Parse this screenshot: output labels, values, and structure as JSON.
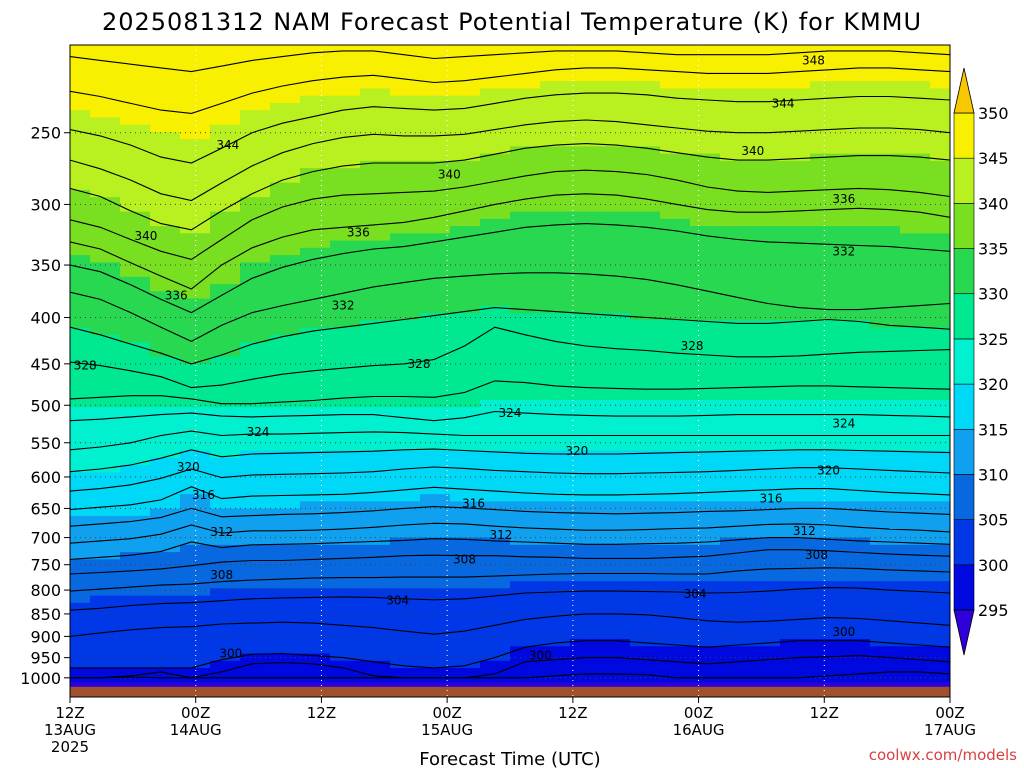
{
  "chart_data": {
    "type": "heatmap",
    "title": "2025081312 NAM Forecast Potential Temperature (K) for KMMU",
    "xlabel": "Forecast Time (UTC)",
    "credit": "coolwx.com/models",
    "y_axis": {
      "scale": "log",
      "range": [
        1050,
        200
      ],
      "ticks": [
        250,
        300,
        350,
        400,
        450,
        500,
        550,
        600,
        650,
        700,
        750,
        800,
        850,
        900,
        950,
        1000
      ]
    },
    "x_axis": {
      "range": [
        "2025-08-13T12:00Z",
        "2025-08-17T00:00Z"
      ],
      "ticks": [
        {
          "lines": [
            "12Z",
            "13AUG",
            "2025"
          ],
          "time": "2025-08-13T12:00Z"
        },
        {
          "lines": [
            "00Z",
            "14AUG"
          ],
          "time": "2025-08-14T00:00Z"
        },
        {
          "lines": [
            "12Z"
          ],
          "time": "2025-08-14T12:00Z"
        },
        {
          "lines": [
            "00Z",
            "15AUG"
          ],
          "time": "2025-08-15T00:00Z"
        },
        {
          "lines": [
            "12Z"
          ],
          "time": "2025-08-15T12:00Z"
        },
        {
          "lines": [
            "00Z",
            "16AUG"
          ],
          "time": "2025-08-16T00:00Z"
        },
        {
          "lines": [
            "12Z"
          ],
          "time": "2025-08-16T12:00Z"
        },
        {
          "lines": [
            "00Z",
            "17AUG"
          ],
          "time": "2025-08-17T00:00Z"
        }
      ],
      "grid": "dotted"
    },
    "colorbar": {
      "labels": [
        295,
        300,
        305,
        310,
        315,
        320,
        325,
        330,
        335,
        340,
        345,
        350
      ],
      "bins": [
        {
          "from": 290,
          "to": 295,
          "color": "#3000d8"
        },
        {
          "from": 295,
          "to": 300,
          "color": "#0008e0"
        },
        {
          "from": 300,
          "to": 305,
          "color": "#0038e8"
        },
        {
          "from": 305,
          "to": 310,
          "color": "#0868e0"
        },
        {
          "from": 310,
          "to": 315,
          "color": "#10a0f0"
        },
        {
          "from": 315,
          "to": 320,
          "color": "#00d8f8"
        },
        {
          "from": 320,
          "to": 325,
          "color": "#00f0d0"
        },
        {
          "from": 325,
          "to": 330,
          "color": "#00e890"
        },
        {
          "from": 330,
          "to": 335,
          "color": "#28d850"
        },
        {
          "from": 335,
          "to": 340,
          "color": "#78e020"
        },
        {
          "from": 340,
          "to": 345,
          "color": "#b8f020"
        },
        {
          "from": 345,
          "to": 350,
          "color": "#f8f000"
        },
        {
          "from": 350,
          "to": 355,
          "color": "#f8c800"
        }
      ],
      "extend": "both"
    },
    "ground_color": "#a0522d",
    "isentropes": [
      {
        "theta": 296,
        "p": [
          1000,
          1000,
          998,
          1000,
          1000,
          1000,
          1000,
          1000,
          1000,
          1000,
          1000,
          1000,
          1000,
          1000,
          1000,
          1000,
          995,
          990,
          990,
          992,
          1000,
          1000,
          1000,
          1000,
          1000,
          995,
          990,
          985,
          985,
          990
        ]
      },
      {
        "theta": 298,
        "p": [
          1000,
          1000,
          995,
          985,
          1000,
          985,
          965,
          962,
          965,
          975,
          995,
          1000,
          1000,
          1000,
          990,
          960,
          955,
          950,
          950,
          955,
          960,
          965,
          960,
          955,
          950,
          948,
          945,
          950,
          955,
          960
        ]
      },
      {
        "theta": 300,
        "p": [
          975,
          975,
          975,
          975,
          975,
          955,
          942,
          940,
          945,
          950,
          960,
          970,
          975,
          970,
          950,
          925,
          915,
          910,
          910,
          915,
          920,
          925,
          920,
          915,
          910,
          910,
          910,
          915,
          920,
          925
        ]
      },
      {
        "theta": 302,
        "p": [
          900,
          892,
          885,
          880,
          878,
          872,
          870,
          868,
          870,
          875,
          880,
          888,
          895,
          888,
          875,
          862,
          855,
          850,
          850,
          852,
          858,
          865,
          868,
          866,
          862,
          858,
          860,
          865,
          870,
          875
        ]
      },
      {
        "theta": 304,
        "p": [
          842,
          838,
          832,
          828,
          826,
          822,
          818,
          816,
          815,
          814,
          815,
          818,
          820,
          818,
          812,
          806,
          804,
          802,
          802,
          803,
          804,
          806,
          805,
          802,
          798,
          795,
          796,
          800,
          803,
          806
        ]
      },
      {
        "theta": 306,
        "p": [
          802,
          798,
          794,
          790,
          788,
          783,
          780,
          778,
          776,
          775,
          775,
          774,
          774,
          774,
          772,
          770,
          768,
          767,
          767,
          767,
          768,
          768,
          762,
          758,
          757,
          756,
          757,
          760,
          762,
          764
        ]
      },
      {
        "theta": 308,
        "p": [
          768,
          765,
          762,
          758,
          752,
          745,
          742,
          742,
          740,
          738,
          736,
          733,
          732,
          733,
          733,
          735,
          736,
          738,
          738,
          738,
          736,
          734,
          728,
          722,
          722,
          724,
          727,
          730,
          732,
          734
        ]
      },
      {
        "theta": 310,
        "p": [
          740,
          736,
          732,
          725,
          708,
          718,
          713,
          712,
          711,
          709,
          707,
          705,
          702,
          703,
          706,
          708,
          710,
          712,
          712,
          711,
          710,
          708,
          704,
          700,
          700,
          703,
          706,
          708,
          710,
          712
        ]
      },
      {
        "theta": 312,
        "p": [
          710,
          706,
          702,
          694,
          678,
          692,
          688,
          688,
          687,
          685,
          682,
          678,
          675,
          676,
          680,
          683,
          685,
          687,
          687,
          686,
          684,
          683,
          680,
          677,
          676,
          678,
          682,
          685,
          687,
          690
        ]
      },
      {
        "theta": 314,
        "p": [
          680,
          676,
          672,
          665,
          650,
          664,
          662,
          660,
          659,
          657,
          654,
          650,
          647,
          649,
          652,
          655,
          657,
          658,
          659,
          658,
          657,
          655,
          654,
          652,
          650,
          650,
          653,
          656,
          658,
          660
        ]
      },
      {
        "theta": 316,
        "p": [
          652,
          648,
          644,
          636,
          615,
          634,
          630,
          629,
          628,
          627,
          624,
          620,
          616,
          619,
          622,
          625,
          627,
          628,
          628,
          627,
          626,
          624,
          622,
          620,
          618,
          618,
          621,
          624,
          626,
          628
        ]
      },
      {
        "theta": 318,
        "p": [
          622,
          618,
          612,
          602,
          588,
          601,
          597,
          596,
          595,
          594,
          592,
          588,
          585,
          587,
          590,
          592,
          594,
          595,
          595,
          594,
          593,
          592,
          590,
          588,
          586,
          586,
          588,
          590,
          592,
          594
        ]
      },
      {
        "theta": 320,
        "p": [
          592,
          588,
          582,
          572,
          560,
          570,
          566,
          565,
          564,
          563,
          562,
          560,
          559,
          561,
          563,
          565,
          566,
          566,
          566,
          565,
          564,
          563,
          562,
          561,
          560,
          560,
          561,
          562,
          563,
          564
        ]
      },
      {
        "theta": 322,
        "p": [
          560,
          556,
          550,
          540,
          534,
          540,
          538,
          538,
          537,
          536,
          535,
          536,
          538,
          540,
          540,
          540,
          540,
          540,
          540,
          540,
          540,
          540,
          540,
          540,
          540,
          540,
          540,
          540,
          540,
          540
        ]
      },
      {
        "theta": 324,
        "p": [
          520,
          518,
          515,
          512,
          510,
          514,
          515,
          514,
          513,
          512,
          512,
          516,
          520,
          516,
          508,
          510,
          512,
          513,
          514,
          514,
          514,
          513,
          512,
          512,
          512,
          512,
          512,
          513,
          514,
          515
        ]
      },
      {
        "theta": 326,
        "p": [
          492,
          490,
          488,
          488,
          492,
          498,
          498,
          496,
          494,
          491,
          489,
          489,
          490,
          484,
          470,
          472,
          476,
          478,
          479,
          480,
          480,
          479,
          478,
          477,
          476,
          476,
          477,
          478,
          479,
          480
        ]
      },
      {
        "theta": 328,
        "p": [
          448,
          452,
          458,
          465,
          478,
          475,
          468,
          462,
          458,
          455,
          452,
          450,
          445,
          430,
          410,
          418,
          425,
          430,
          433,
          435,
          438,
          440,
          442,
          442,
          441,
          439,
          437,
          436,
          435,
          434
        ]
      },
      {
        "theta": 330,
        "p": [
          410,
          418,
          428,
          438,
          450,
          440,
          428,
          420,
          414,
          410,
          406,
          402,
          398,
          394,
          390,
          392,
          394,
          396,
          398,
          400,
          402,
          404,
          406,
          406,
          404,
          402,
          404,
          408,
          410,
          412
        ]
      },
      {
        "theta": 332,
        "p": [
          375,
          382,
          395,
          410,
          425,
          408,
          395,
          388,
          382,
          376,
          370,
          366,
          362,
          360,
          358,
          357,
          357,
          358,
          360,
          363,
          368,
          374,
          380,
          386,
          390,
          392,
          392,
          390,
          388,
          386
        ]
      },
      {
        "theta": 334,
        "p": [
          350,
          356,
          368,
          382,
          395,
          378,
          362,
          352,
          345,
          340,
          336,
          334,
          330,
          326,
          322,
          318,
          316,
          315,
          316,
          318,
          321,
          325,
          328,
          330,
          331,
          332,
          333,
          334,
          336,
          338
        ]
      },
      {
        "theta": 336,
        "p": [
          330,
          336,
          348,
          360,
          372,
          350,
          335,
          326,
          320,
          318,
          316,
          314,
          310,
          305,
          300,
          296,
          293,
          292,
          293,
          296,
          300,
          304,
          306,
          306,
          305,
          304,
          303,
          304,
          306,
          310
        ]
      },
      {
        "theta": 338,
        "p": [
          312,
          318,
          328,
          338,
          345,
          328,
          312,
          302,
          296,
          293,
          292,
          291,
          290,
          287,
          283,
          279,
          276,
          275,
          276,
          278,
          282,
          287,
          290,
          291,
          290,
          289,
          288,
          289,
          291,
          294
        ]
      },
      {
        "theta": 340,
        "p": [
          288,
          294,
          305,
          315,
          320,
          305,
          292,
          282,
          276,
          272,
          270,
          270,
          270,
          268,
          264,
          260,
          258,
          257,
          258,
          260,
          263,
          266,
          268,
          268,
          267,
          266,
          265,
          265,
          266,
          268
        ]
      },
      {
        "theta": 342,
        "p": [
          268,
          274,
          282,
          292,
          297,
          284,
          272,
          263,
          257,
          253,
          251,
          252,
          252,
          251,
          248,
          245,
          243,
          242,
          243,
          245,
          247,
          249,
          250,
          250,
          249,
          248,
          247,
          247,
          248,
          250
        ]
      },
      {
        "theta": 344,
        "p": [
          248,
          252,
          258,
          266,
          270,
          260,
          250,
          244,
          240,
          236,
          234,
          235,
          236,
          235,
          232,
          229,
          227,
          226,
          226,
          227,
          229,
          230,
          231,
          231,
          230,
          229,
          228,
          228,
          229,
          230
        ]
      },
      {
        "theta": 346,
        "p": [
          225,
          228,
          232,
          236,
          238,
          232,
          226,
          222,
          219,
          217,
          216,
          218,
          220,
          219,
          217,
          215,
          213,
          212,
          212,
          213,
          214,
          215,
          215,
          215,
          214,
          213,
          212,
          212,
          213,
          214
        ]
      },
      {
        "theta": 348,
        "p": [
          206,
          208,
          210,
          212,
          214,
          211,
          208,
          206,
          204,
          203,
          203,
          205,
          207,
          206,
          205,
          204,
          203,
          203,
          203,
          204,
          205,
          205,
          205,
          205,
          204,
          203,
          203,
          203,
          204,
          205
        ]
      }
    ],
    "contour_labels": [
      {
        "text": "348",
        "col": 24.5,
        "p": 208
      },
      {
        "text": "344",
        "col": 5.2,
        "p": 258
      },
      {
        "text": "344",
        "col": 23.5,
        "p": 232
      },
      {
        "text": "340",
        "col": 2.5,
        "p": 325
      },
      {
        "text": "340",
        "col": 12.5,
        "p": 278
      },
      {
        "text": "340",
        "col": 22.5,
        "p": 262
      },
      {
        "text": "336",
        "col": 3.5,
        "p": 378
      },
      {
        "text": "336",
        "col": 9.5,
        "p": 322
      },
      {
        "text": "336",
        "col": 25.5,
        "p": 296
      },
      {
        "text": "332",
        "col": 9.0,
        "p": 388
      },
      {
        "text": "332",
        "col": 25.5,
        "p": 338
      },
      {
        "text": "328",
        "col": 0.5,
        "p": 452
      },
      {
        "text": "328",
        "col": 11.5,
        "p": 450
      },
      {
        "text": "328",
        "col": 20.5,
        "p": 430
      },
      {
        "text": "324",
        "col": 6.2,
        "p": 535
      },
      {
        "text": "324",
        "col": 14.5,
        "p": 510
      },
      {
        "text": "324",
        "col": 25.5,
        "p": 524
      },
      {
        "text": "320",
        "col": 3.9,
        "p": 585
      },
      {
        "text": "320",
        "col": 16.7,
        "p": 562
      },
      {
        "text": "320",
        "col": 25.0,
        "p": 590
      },
      {
        "text": "316",
        "col": 4.4,
        "p": 628
      },
      {
        "text": "316",
        "col": 13.3,
        "p": 642
      },
      {
        "text": "316",
        "col": 23.1,
        "p": 634
      },
      {
        "text": "312",
        "col": 5.0,
        "p": 690
      },
      {
        "text": "312",
        "col": 14.2,
        "p": 695
      },
      {
        "text": "312",
        "col": 24.2,
        "p": 688
      },
      {
        "text": "308",
        "col": 5.0,
        "p": 770
      },
      {
        "text": "308",
        "col": 13.0,
        "p": 740
      },
      {
        "text": "308",
        "col": 24.6,
        "p": 732
      },
      {
        "text": "304",
        "col": 10.8,
        "p": 822
      },
      {
        "text": "304",
        "col": 20.6,
        "p": 808
      },
      {
        "text": "300",
        "col": 5.3,
        "p": 940
      },
      {
        "text": "300",
        "col": 15.5,
        "p": 945
      },
      {
        "text": "300",
        "col": 25.5,
        "p": 890
      }
    ]
  }
}
